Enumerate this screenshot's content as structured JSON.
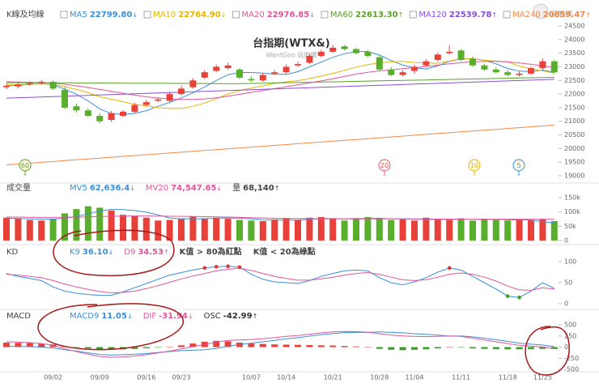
{
  "logo": "玩股網",
  "chart_data": [
    {
      "type": "candlestick",
      "panel_label": "K線及均線",
      "title": "台指期(WTX&)",
      "subtitle": "WantGoo 玩股網",
      "up_color": "#e8413a",
      "down_color": "#5aae2e",
      "open": [
        22250,
        22280,
        22360,
        22400,
        22450,
        22150,
        21550,
        21400,
        21200,
        21050,
        21200,
        21350,
        21600,
        21750,
        21750,
        22000,
        22250,
        22600,
        22850,
        22950,
        22900,
        22550,
        22500,
        22750,
        22800,
        23050,
        23150,
        23400,
        23550,
        23750,
        23650,
        23550,
        23350,
        22900,
        22700,
        22850,
        23050,
        23250,
        23500,
        23600,
        23300,
        23050,
        22900,
        22800,
        22700,
        22750,
        22950,
        23200
      ],
      "high": [
        22380,
        22400,
        22460,
        22520,
        22500,
        22250,
        21650,
        21480,
        21300,
        21380,
        21420,
        21680,
        21780,
        21880,
        22080,
        22300,
        22580,
        22880,
        23080,
        23150,
        22950,
        22650,
        22780,
        22880,
        23080,
        23180,
        23480,
        23620,
        23800,
        23800,
        23700,
        23620,
        23420,
        23000,
        22880,
        23080,
        23280,
        23520,
        23800,
        23650,
        23380,
        23120,
        22980,
        22880,
        22820,
        23020,
        23300,
        23260
      ],
      "low": [
        22180,
        22220,
        22300,
        22350,
        22150,
        21450,
        21320,
        21150,
        20920,
        20980,
        21150,
        21300,
        21550,
        21700,
        21700,
        21950,
        22200,
        22550,
        22800,
        22900,
        22550,
        22450,
        22450,
        22700,
        22750,
        23000,
        23100,
        23350,
        23500,
        23600,
        23450,
        23350,
        22850,
        22650,
        22650,
        22750,
        23000,
        23200,
        23450,
        23200,
        23000,
        22850,
        22750,
        22650,
        22650,
        22700,
        22900,
        22750
      ],
      "close": [
        22300,
        22350,
        22400,
        22450,
        22200,
        21500,
        21400,
        21200,
        21000,
        21300,
        21350,
        21600,
        21700,
        21800,
        22000,
        22200,
        22500,
        22800,
        23000,
        23050,
        22600,
        22500,
        22700,
        22800,
        23000,
        23100,
        23400,
        23550,
        23700,
        23650,
        23500,
        23400,
        22900,
        22700,
        22800,
        23000,
        23200,
        23450,
        23550,
        23250,
        23050,
        22900,
        22800,
        22700,
        22750,
        22950,
        23200,
        22800
      ],
      "series": [
        {
          "name": "MA5",
          "color": "#3a8fd9",
          "last_label": "22799.80",
          "trend": "↓",
          "values": [
            22300,
            22320,
            22350,
            22380,
            22340,
            22180,
            21990,
            21750,
            21460,
            21280,
            21250,
            21290,
            21390,
            21550,
            21690,
            21860,
            22040,
            22260,
            22500,
            22710,
            22790,
            22790,
            22770,
            22730,
            22720,
            22820,
            23000,
            23170,
            23350,
            23480,
            23560,
            23560,
            23430,
            23230,
            23060,
            22960,
            22920,
            23030,
            23200,
            23290,
            23300,
            23240,
            23110,
            22940,
            22840,
            22820,
            22880,
            22800
          ]
        },
        {
          "name": "MA10",
          "color": "#e8b400",
          "last_label": "22764.90",
          "trend": "↓",
          "values": [
            22350,
            22350,
            22360,
            22370,
            22360,
            22270,
            22170,
            22050,
            21900,
            21810,
            21720,
            21620,
            21570,
            21500,
            21470,
            21470,
            21550,
            21670,
            21830,
            22000,
            22130,
            22220,
            22300,
            22390,
            22450,
            22490,
            22570,
            22660,
            22760,
            22870,
            22990,
            23080,
            23140,
            23180,
            23200,
            23160,
            23140,
            23130,
            23210,
            23300,
            23300,
            23240,
            23210,
            23180,
            23020,
            22930,
            22850,
            22770
          ]
        },
        {
          "name": "MA20",
          "color": "#e0559a",
          "last_label": "22976.85",
          "trend": "↓",
          "values": [
            22450,
            22440,
            22430,
            22420,
            22400,
            22360,
            22300,
            22240,
            22170,
            22100,
            22030,
            21960,
            21900,
            21850,
            21820,
            21800,
            21800,
            21820,
            21860,
            21920,
            21990,
            22060,
            22130,
            22200,
            22270,
            22340,
            22410,
            22480,
            22560,
            22650,
            22730,
            22800,
            22850,
            22890,
            22930,
            22970,
            23010,
            23060,
            23110,
            23150,
            23180,
            23200,
            23200,
            23180,
            23140,
            23090,
            23030,
            22980
          ]
        },
        {
          "name": "MA60",
          "color": "#5aa02a",
          "last_label": "22613.30",
          "trend": "↑",
          "values": [
            22420,
            22418,
            22416,
            22414,
            22412,
            22410,
            22408,
            22406,
            22404,
            22402,
            22400,
            22398,
            22396,
            22394,
            22392,
            22390,
            22388,
            22386,
            22384,
            22382,
            22380,
            22389,
            22397,
            22406,
            22415,
            22423,
            22432,
            22440,
            22449,
            22458,
            22466,
            22475,
            22483,
            22492,
            22501,
            22509,
            22518,
            22527,
            22535,
            22544,
            22552,
            22561,
            22570,
            22578,
            22587,
            22596,
            22604,
            22613
          ]
        },
        {
          "name": "MA120",
          "color": "#8a4fd6",
          "last_label": "22539.78",
          "trend": "↑",
          "values": [
            21850,
            21865,
            21879,
            21894,
            21909,
            21923,
            21938,
            21953,
            21967,
            21982,
            21997,
            22011,
            22026,
            22041,
            22055,
            22070,
            22085,
            22099,
            22114,
            22129,
            22144,
            22158,
            22173,
            22188,
            22202,
            22217,
            22232,
            22246,
            22261,
            22276,
            22290,
            22305,
            22320,
            22334,
            22349,
            22364,
            22378,
            22393,
            22408,
            22422,
            22437,
            22452,
            22466,
            22481,
            22496,
            22510,
            22525,
            22540
          ]
        },
        {
          "name": "MA240",
          "color": "#f08a4b",
          "last_label": "20859.47",
          "trend": "↑",
          "values": [
            19400,
            19431,
            19462,
            19493,
            19524,
            19555,
            19586,
            19617,
            19649,
            19680,
            19711,
            19742,
            19773,
            19804,
            19835,
            19866,
            19897,
            19928,
            19959,
            19990,
            20021,
            20052,
            20083,
            20114,
            20145,
            20177,
            20208,
            20239,
            20270,
            20301,
            20332,
            20363,
            20394,
            20425,
            20456,
            20487,
            20518,
            20549,
            20580,
            20611,
            20642,
            20674,
            20705,
            20736,
            20767,
            20798,
            20829,
            20860
          ]
        }
      ],
      "markers": [
        {
          "label": "60",
          "color": "#5aa02a"
        },
        {
          "label": "20",
          "color": "#e0559a"
        },
        {
          "label": "10",
          "color": "#e8b400"
        },
        {
          "label": "5",
          "color": "#3a8fd9"
        }
      ],
      "ylim": [
        19000,
        24500
      ],
      "yticks": [
        19000,
        19500,
        20000,
        20500,
        21000,
        21500,
        22000,
        22500,
        23000,
        23500,
        24000,
        24500
      ]
    },
    {
      "type": "bar",
      "panel_label": "成交量",
      "values": [
        80000,
        78000,
        72000,
        70000,
        75000,
        95000,
        110000,
        120000,
        115000,
        105000,
        90000,
        85000,
        80000,
        70000,
        72000,
        75000,
        85000,
        78000,
        80000,
        76000,
        72000,
        70000,
        68000,
        74000,
        78000,
        72000,
        80000,
        82000,
        75000,
        70000,
        78000,
        82000,
        76000,
        72000,
        74000,
        70000,
        80000,
        75000,
        72000,
        78000,
        70000,
        76000,
        72000,
        70000,
        74000,
        72000,
        75000,
        68140
      ],
      "value_name": "量",
      "last_label": "68,140",
      "trend": "↑",
      "series": [
        {
          "name": "MV5",
          "color": "#3a8fd9",
          "last_label": "62,636.4",
          "trend": "↓",
          "values": [
            78000,
            77000,
            76000,
            75000,
            75000,
            78000,
            84000,
            94000,
            103000,
            109000,
            108000,
            105000,
            99000,
            90000,
            79000,
            76000,
            76000,
            76000,
            78000,
            79000,
            78000,
            76000,
            73000,
            72000,
            72000,
            72000,
            74000,
            77000,
            77000,
            76000,
            77000,
            77000,
            78000,
            76000,
            76000,
            75000,
            74000,
            74000,
            74000,
            75000,
            75000,
            74000,
            74000,
            73000,
            72000,
            72000,
            66000,
            62636
          ]
        },
        {
          "name": "MV20",
          "color": "#e0559a",
          "last_label": "74,547.65",
          "trend": "↓",
          "values": [
            82000,
            82000,
            81500,
            81000,
            81000,
            81500,
            82000,
            83000,
            84000,
            85000,
            85500,
            86000,
            86000,
            85500,
            85000,
            84500,
            84000,
            83500,
            83000,
            82000,
            81000,
            80000,
            79000,
            78000,
            77500,
            77000,
            76500,
            76000,
            76000,
            75500,
            75500,
            75500,
            76000,
            76000,
            76000,
            75500,
            75500,
            75000,
            75000,
            75000,
            75000,
            74800,
            74800,
            74700,
            74700,
            74600,
            74600,
            74548
          ]
        }
      ],
      "ylim": [
        0,
        150000
      ],
      "yticks": [
        0,
        {
          "value": 50000,
          "label": "50k"
        },
        {
          "value": 100000,
          "label": "100k"
        },
        {
          "value": 150000,
          "label": "150k"
        }
      ]
    },
    {
      "type": "line",
      "panel_label": "KD",
      "notes": [
        "K值 > 80為紅點",
        "K值 < 20為綠點"
      ],
      "dot_above": 80,
      "dot_above_color": "#e0343a",
      "dot_below": 20,
      "dot_below_color": "#3aa02a",
      "series": [
        {
          "name": "K9",
          "color": "#3a8fd9",
          "last_label": "36.10",
          "trend": "↓",
          "values": [
            72,
            65,
            60,
            55,
            40,
            30,
            25,
            22,
            20,
            20,
            28,
            38,
            48,
            58,
            68,
            74,
            80,
            85,
            88,
            89,
            87,
            70,
            58,
            52,
            50,
            48,
            55,
            65,
            72,
            78,
            80,
            78,
            62,
            50,
            45,
            52,
            62,
            75,
            85,
            80,
            65,
            50,
            35,
            18,
            15,
            30,
            50,
            36.1
          ]
        },
        {
          "name": "D9",
          "color": "#e0559a",
          "last_label": "34.53",
          "trend": "↑",
          "values": [
            70,
            68,
            65,
            62,
            55,
            47,
            40,
            34,
            29,
            26,
            27,
            30,
            36,
            43,
            51,
            59,
            66,
            72,
            78,
            82,
            84,
            79,
            72,
            65,
            60,
            56,
            56,
            59,
            63,
            68,
            72,
            74,
            70,
            63,
            57,
            55,
            57,
            63,
            70,
            73,
            70,
            63,
            54,
            42,
            33,
            32,
            38,
            34.53
          ]
        }
      ],
      "ylim": [
        0,
        100
      ],
      "yticks": [
        0,
        50,
        100
      ]
    },
    {
      "type": "macd",
      "panel_label": "MACD",
      "series": [
        {
          "name": "MACD9",
          "color": "#3a8fd9",
          "last_label": "11.05",
          "trend": "↓",
          "values": [
            20,
            15,
            10,
            0,
            -20,
            -60,
            -90,
            -130,
            -165,
            -180,
            -170,
            -160,
            -145,
            -120,
            -100,
            -80,
            -70,
            -60,
            -30,
            20,
            60,
            90,
            120,
            150,
            185,
            210,
            245,
            280,
            305,
            325,
            330,
            330,
            340,
            330,
            320,
            300,
            285,
            270,
            245,
            250,
            230,
            200,
            165,
            130,
            90,
            65,
            45,
            11.05
          ]
        },
        {
          "name": "DIF",
          "color": "#e0559a",
          "last_label": "-31.94",
          "trend": "↓",
          "values": [
            120,
            110,
            100,
            80,
            40,
            -40,
            -100,
            -160,
            -210,
            -230,
            -220,
            -200,
            -170,
            -130,
            -90,
            -40,
            10,
            60,
            110,
            150,
            160,
            170,
            190,
            210,
            240,
            260,
            290,
            320,
            340,
            350,
            345,
            335,
            300,
            270,
            250,
            240,
            235,
            240,
            250,
            240,
            200,
            160,
            120,
            80,
            40,
            20,
            5,
            -31.94
          ]
        }
      ],
      "osc": {
        "name": "OSC",
        "color": "#333333",
        "up_color": "#e8413a",
        "down_color": "#3aa02a",
        "last_label": "-42.99",
        "trend": "↑",
        "values": [
          100,
          95,
          90,
          80,
          60,
          20,
          -10,
          -30,
          -45,
          -50,
          -50,
          -40,
          -25,
          -10,
          10,
          40,
          80,
          120,
          140,
          130,
          100,
          80,
          70,
          60,
          55,
          50,
          45,
          40,
          35,
          25,
          15,
          5,
          -40,
          -60,
          -70,
          -60,
          -50,
          -30,
          5,
          -10,
          -30,
          -40,
          -45,
          -50,
          -50,
          -45,
          -40,
          -42.99
        ]
      },
      "categories": [
        null,
        null,
        null,
        null,
        "09/02",
        null,
        null,
        null,
        "09/09",
        null,
        null,
        null,
        "09/16",
        null,
        null,
        "09/23",
        null,
        null,
        null,
        null,
        null,
        "10/07",
        null,
        null,
        "10/14",
        null,
        null,
        null,
        "10/21",
        null,
        null,
        null,
        "10/28",
        null,
        null,
        "11/04",
        null,
        null,
        null,
        "11/11",
        null,
        null,
        null,
        "11/18",
        null,
        null,
        "11/25",
        null
      ],
      "ylim": [
        -500,
        500
      ],
      "yticks": [
        -500,
        -250,
        0,
        250,
        500
      ]
    }
  ]
}
